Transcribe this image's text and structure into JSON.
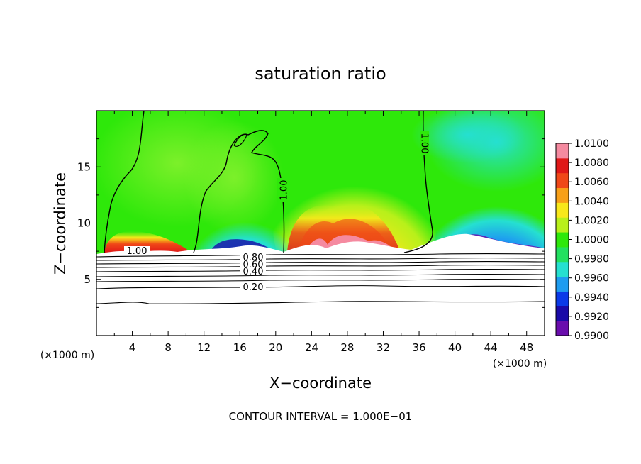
{
  "chart_data": {
    "type": "heatmap",
    "title": "saturation ratio",
    "xlabel": "X−coordinate",
    "ylabel": "Z−coordinate",
    "x_unit": "(×1000 m)",
    "y_unit": "(×1000 m)",
    "xlim": [
      0,
      50
    ],
    "ylim": [
      0,
      20
    ],
    "x_ticks": [
      4,
      8,
      12,
      16,
      20,
      24,
      28,
      32,
      36,
      40,
      44,
      48
    ],
    "y_ticks": [
      5,
      10,
      15
    ],
    "footer": "CONTOUR INTERVAL = 1.000E−01",
    "colorbar": {
      "min": 0.99,
      "max": 1.01,
      "levels": [
        "1.0100",
        "1.0080",
        "1.0060",
        "1.0040",
        "1.0020",
        "1.0000",
        "0.9980",
        "0.9960",
        "0.9940",
        "0.9920",
        "0.9900"
      ],
      "colors": [
        "#6a0dad",
        "#1a0aa8",
        "#0a3ae8",
        "#1e9cf0",
        "#25e0d0",
        "#22e060",
        "#2ee80a",
        "#b8f01a",
        "#f8e81a",
        "#f8a018",
        "#f04818",
        "#e01818",
        "#f58aa0"
      ]
    },
    "contour_labels": [
      "1.00",
      "1.00",
      "1.00",
      "0.80",
      "0.60",
      "0.40",
      "0.20"
    ],
    "contour_levels": [
      0.2,
      0.4,
      0.6,
      0.8,
      1.0
    ],
    "field_regions": [
      {
        "x_range": [
          0,
          11
        ],
        "base_value": 1.0008,
        "surface_peak": 1.0085
      },
      {
        "x_range": [
          11,
          21
        ],
        "base_value": 0.9975,
        "surface_peak": 0.9905
      },
      {
        "x_range": [
          21,
          35
        ],
        "base_value": 1.0035,
        "surface_peak": 1.008
      },
      {
        "x_range": [
          35,
          50
        ],
        "base_value": 0.9955,
        "surface_peak": 0.9905
      }
    ]
  }
}
